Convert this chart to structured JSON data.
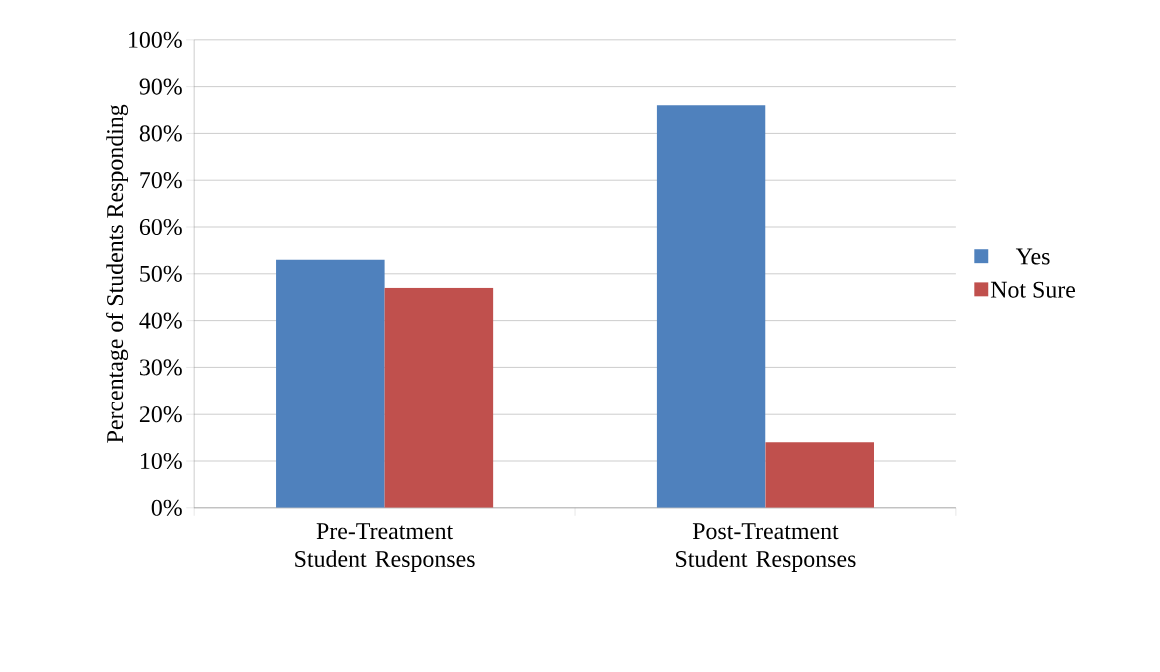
{
  "chart_data": {
    "type": "bar",
    "categories": [
      "Pre-Treatment Student Responses",
      "Post-Treatment Student Responses"
    ],
    "series": [
      {
        "name": "Yes",
        "color": "#4f81bd",
        "values": [
          53,
          86
        ]
      },
      {
        "name": "Not Sure",
        "color": "#c0504d",
        "values": [
          47,
          14
        ]
      }
    ],
    "ylabel": "Percentage of Students Responding",
    "ylim": [
      0,
      100
    ],
    "yticks": [
      {
        "value": 0,
        "label": "0%"
      },
      {
        "value": 10,
        "label": "10%"
      },
      {
        "value": 20,
        "label": "20%"
      },
      {
        "value": 30,
        "label": "30%"
      },
      {
        "value": 40,
        "label": "40%"
      },
      {
        "value": 50,
        "label": "50%"
      },
      {
        "value": 60,
        "label": "60%"
      },
      {
        "value": 70,
        "label": "70%"
      },
      {
        "value": 80,
        "label": "80%"
      },
      {
        "value": 90,
        "label": "90%"
      },
      {
        "value": 100,
        "label": "100%"
      }
    ],
    "grid": "y",
    "legend": "right"
  }
}
